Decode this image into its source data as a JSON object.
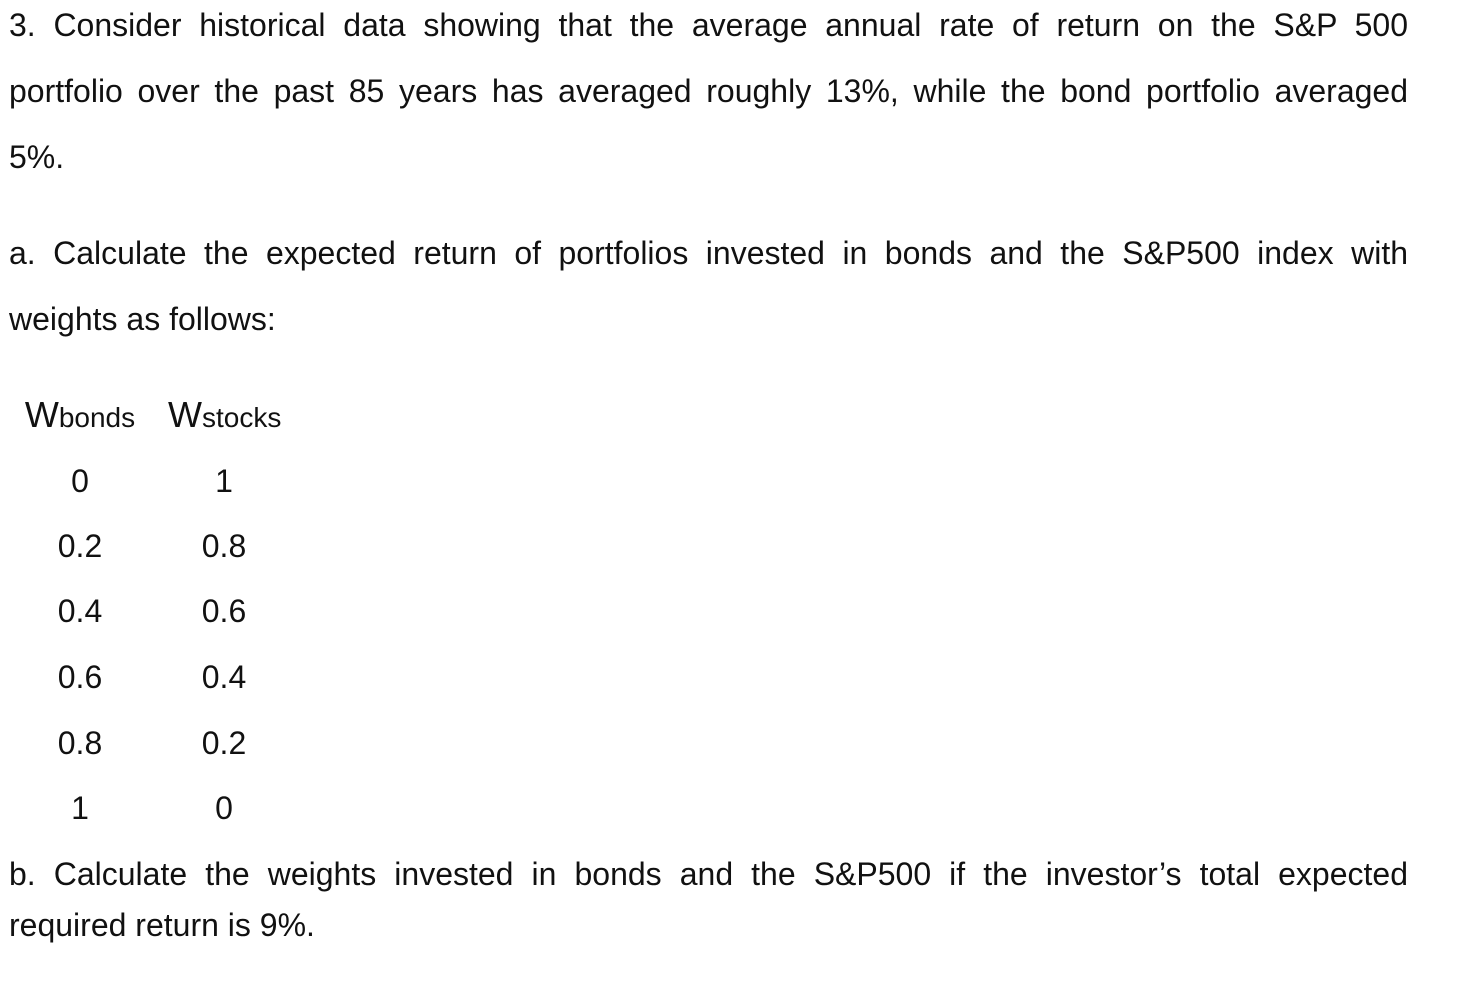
{
  "question": {
    "intro_lines": [
      "3. Consider historical data showing that the average annual rate of return on the S&P 500",
      "portfolio over the past 85 years has averaged roughly 13%, while the bond portfolio averaged",
      "5%."
    ],
    "part_a_lines": [
      "a. Calculate the expected return of portfolios invested in bonds and the S&P500 index with",
      "weights as follows:"
    ],
    "table": {
      "headers": {
        "bonds_main": "W",
        "bonds_sub": "bonds",
        "stocks_main": "W",
        "stocks_sub": "stocks"
      },
      "rows": [
        {
          "bonds": "0",
          "stocks": "1"
        },
        {
          "bonds": "0.2",
          "stocks": "0.8"
        },
        {
          "bonds": "0.4",
          "stocks": "0.6"
        },
        {
          "bonds": "0.6",
          "stocks": "0.4"
        },
        {
          "bonds": "0.8",
          "stocks": "0.2"
        },
        {
          "bonds": "1",
          "stocks": "0"
        }
      ]
    },
    "part_b_lines": [
      "b. Calculate the weights invested in bonds and the S&P500 if the investor’s total expected",
      "required return is 9%."
    ]
  }
}
